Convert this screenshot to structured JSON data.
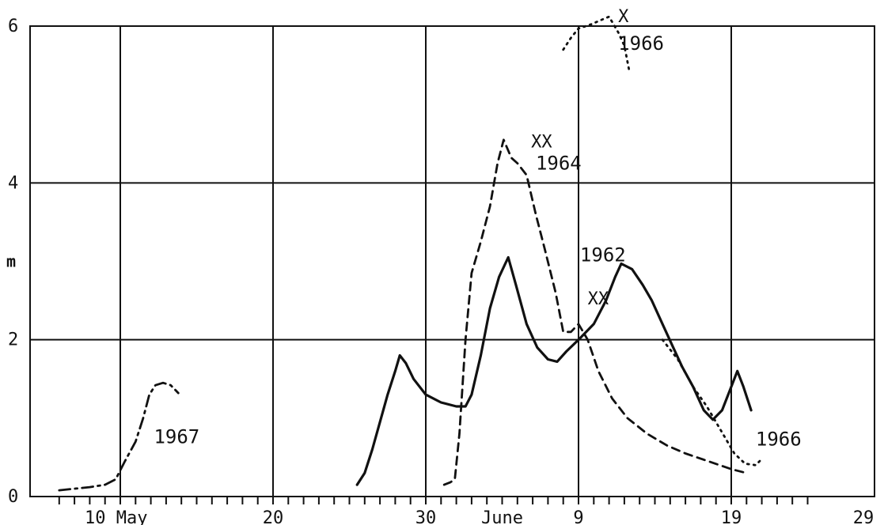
{
  "chart_data": {
    "type": "line",
    "title": "",
    "xlabel": "",
    "ylabel": "m",
    "ylim": [
      0,
      6
    ],
    "xlim": [
      0,
      50
    ],
    "grid": true,
    "x_major_ticks": [
      {
        "x": 4,
        "label": "10 May"
      },
      {
        "x": 14,
        "label": "20"
      },
      {
        "x": 24,
        "label": "30"
      },
      {
        "x": 29,
        "label": "June"
      },
      {
        "x": 34,
        "label": "9"
      },
      {
        "x": 44,
        "label": "19"
      },
      {
        "x": 54,
        "label": "29"
      }
    ],
    "y_ticks": [
      {
        "y": 0,
        "label": "0"
      },
      {
        "y": 2,
        "label": "2"
      },
      {
        "y": 4,
        "label": "4"
      },
      {
        "y": 6,
        "label": "6"
      }
    ],
    "series": [
      {
        "name": "1962",
        "style": "solid",
        "label_at": {
          "x": 34.1,
          "y": 3.0
        },
        "points": [
          [
            19.5,
            0.15
          ],
          [
            20.0,
            0.3
          ],
          [
            20.5,
            0.6
          ],
          [
            21.0,
            0.95
          ],
          [
            21.5,
            1.3
          ],
          [
            22.0,
            1.6
          ],
          [
            22.3,
            1.8
          ],
          [
            22.7,
            1.7
          ],
          [
            23.2,
            1.5
          ],
          [
            24.0,
            1.3
          ],
          [
            25.0,
            1.2
          ],
          [
            26.0,
            1.15
          ],
          [
            26.6,
            1.15
          ],
          [
            27.0,
            1.3
          ],
          [
            27.6,
            1.8
          ],
          [
            28.2,
            2.4
          ],
          [
            28.8,
            2.8
          ],
          [
            29.4,
            3.05
          ],
          [
            29.9,
            2.7
          ],
          [
            30.6,
            2.2
          ],
          [
            31.3,
            1.9
          ],
          [
            32.0,
            1.75
          ],
          [
            32.6,
            1.72
          ],
          [
            33.2,
            1.85
          ],
          [
            34.0,
            2.0
          ],
          [
            35.0,
            2.2
          ],
          [
            35.8,
            2.5
          ],
          [
            36.4,
            2.8
          ],
          [
            36.8,
            2.97
          ],
          [
            37.5,
            2.9
          ],
          [
            38.2,
            2.7
          ],
          [
            38.8,
            2.5
          ],
          [
            39.5,
            2.2
          ],
          [
            40.2,
            1.9
          ],
          [
            40.8,
            1.65
          ],
          [
            41.5,
            1.4
          ],
          [
            42.2,
            1.1
          ],
          [
            42.8,
            0.98
          ],
          [
            43.4,
            1.1
          ],
          [
            43.9,
            1.35
          ],
          [
            44.4,
            1.6
          ],
          [
            44.8,
            1.4
          ],
          [
            45.3,
            1.1
          ]
        ]
      },
      {
        "name": "1964",
        "style": "dashed",
        "label_at": {
          "x": 31.2,
          "y": 4.17
        },
        "marker_label": "XX",
        "marker_at": {
          "x": 30.9,
          "y": 4.45
        },
        "points": [
          [
            25.2,
            0.15
          ],
          [
            25.6,
            0.18
          ],
          [
            25.9,
            0.22
          ],
          [
            26.2,
            0.8
          ],
          [
            26.6,
            2.0
          ],
          [
            27.0,
            2.85
          ],
          [
            27.6,
            3.25
          ],
          [
            28.2,
            3.7
          ],
          [
            28.7,
            4.25
          ],
          [
            29.1,
            4.55
          ],
          [
            29.6,
            4.32
          ],
          [
            30.0,
            4.25
          ],
          [
            30.6,
            4.1
          ],
          [
            31.2,
            3.6
          ],
          [
            31.8,
            3.15
          ],
          [
            32.5,
            2.6
          ],
          [
            33.0,
            2.1
          ],
          [
            33.5,
            2.1
          ],
          [
            34.0,
            2.2
          ],
          [
            34.6,
            2.0
          ],
          [
            35.3,
            1.6
          ],
          [
            36.2,
            1.25
          ],
          [
            37.2,
            1.0
          ],
          [
            38.5,
            0.8
          ],
          [
            39.8,
            0.65
          ],
          [
            41.0,
            0.55
          ],
          [
            42.5,
            0.45
          ],
          [
            44.0,
            0.35
          ],
          [
            45.0,
            0.3
          ]
        ]
      },
      {
        "name": "1966",
        "style": "dotted",
        "label_at": {
          "x": 36.6,
          "y": 5.7
        },
        "label_at_2": {
          "x": 45.6,
          "y": 0.65
        },
        "marker_label": "X",
        "marker_at": {
          "x": 36.6,
          "y": 6.05
        },
        "marker_label_2": "XX",
        "marker_at_2": {
          "x": 34.6,
          "y": 2.45
        },
        "points_a": [
          [
            33.0,
            5.7
          ],
          [
            33.5,
            5.85
          ],
          [
            34.0,
            5.97
          ],
          [
            34.8,
            6.02
          ],
          [
            35.5,
            6.08
          ],
          [
            36.0,
            6.12
          ],
          [
            36.6,
            5.92
          ],
          [
            37.0,
            5.75
          ],
          [
            37.3,
            5.45
          ]
        ],
        "points_b": [
          [
            39.5,
            2.0
          ],
          [
            40.5,
            1.75
          ],
          [
            41.5,
            1.4
          ],
          [
            42.4,
            1.15
          ],
          [
            43.3,
            0.85
          ],
          [
            44.2,
            0.55
          ],
          [
            44.9,
            0.42
          ],
          [
            45.6,
            0.4
          ],
          [
            46.0,
            0.48
          ]
        ]
      },
      {
        "name": "1967",
        "style": "dashdot",
        "label_at": {
          "x": 6.2,
          "y": 0.68
        },
        "points": [
          [
            0.0,
            0.08
          ],
          [
            1.0,
            0.1
          ],
          [
            2.0,
            0.12
          ],
          [
            3.0,
            0.15
          ],
          [
            3.7,
            0.22
          ],
          [
            4.3,
            0.45
          ],
          [
            5.0,
            0.7
          ],
          [
            5.5,
            1.0
          ],
          [
            5.9,
            1.3
          ],
          [
            6.3,
            1.42
          ],
          [
            6.8,
            1.45
          ],
          [
            7.3,
            1.42
          ],
          [
            7.8,
            1.32
          ]
        ]
      }
    ]
  }
}
